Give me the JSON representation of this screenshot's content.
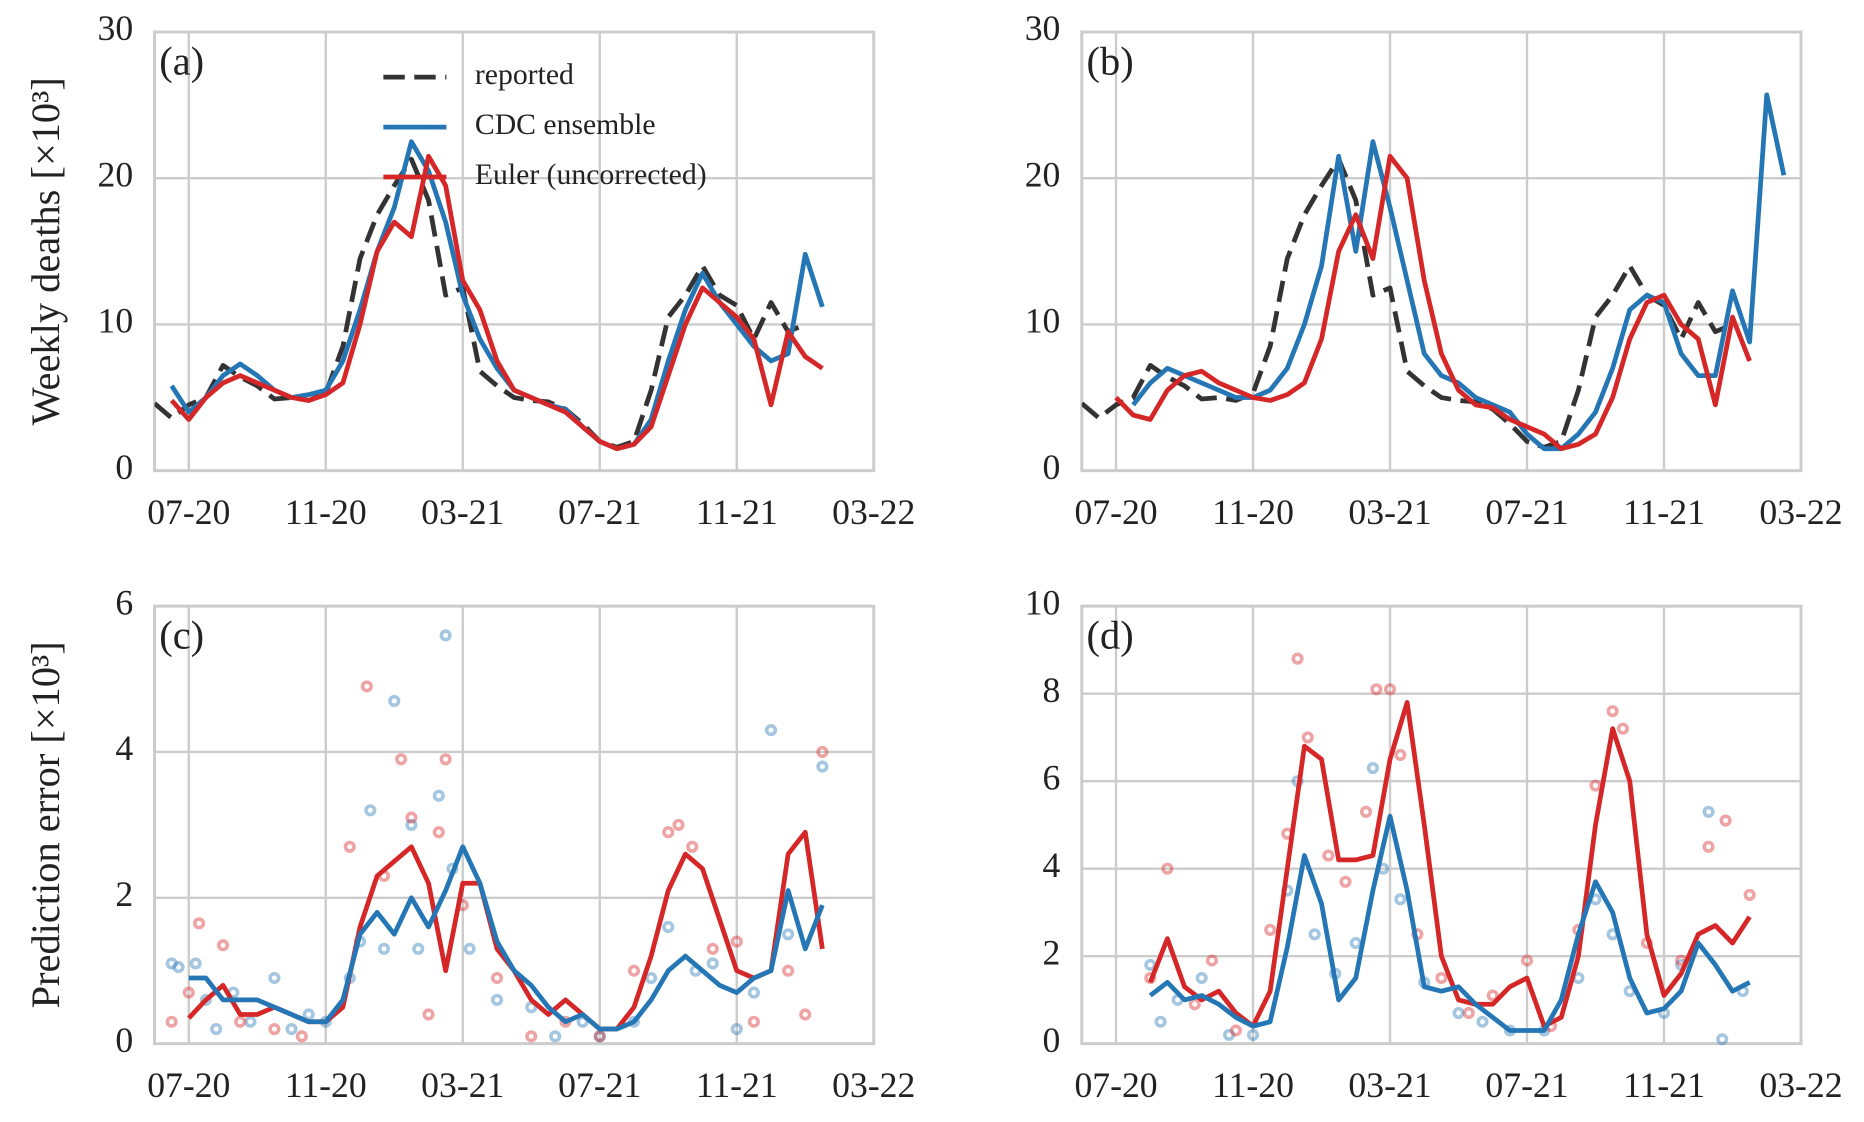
{
  "chart_data": [
    {
      "type": "line",
      "panel_label": "(a)",
      "ylabel": "Weekly deaths [×10³]",
      "x": [
        -1,
        -0.5,
        0,
        0.5,
        1,
        1.5,
        2,
        2.5,
        3,
        3.5,
        4,
        4.5,
        5,
        5.5,
        6,
        6.5,
        7,
        7.5,
        8,
        8.5,
        9,
        9.5,
        10,
        10.5,
        11,
        11.5,
        12,
        12.5,
        13,
        13.5,
        14,
        14.5,
        15,
        15.5,
        16,
        16.5,
        17,
        17.5,
        18,
        18.5,
        19,
        19.5
      ],
      "xlim": [
        -1,
        20
      ],
      "xticks": [
        {
          "value": 0,
          "label": "07-20"
        },
        {
          "value": 4,
          "label": "11-20"
        },
        {
          "value": 8,
          "label": "03-21"
        },
        {
          "value": 12,
          "label": "07-21"
        },
        {
          "value": 16,
          "label": "11-21"
        },
        {
          "value": 20,
          "label": "03-22"
        }
      ],
      "ylim": [
        0,
        30
      ],
      "yticks": [
        0,
        10,
        20,
        30
      ],
      "grid": true,
      "legend": "upper center",
      "series": [
        {
          "name": "reported",
          "color": "#333333",
          "linestyle": "dashed",
          "values": [
            4.6,
            3.6,
            4.5,
            5.0,
            7.2,
            6.4,
            5.8,
            4.9,
            5.0,
            4.8,
            5.3,
            8.5,
            14.5,
            17.5,
            19.5,
            21.3,
            18.5,
            12.0,
            12.5,
            6.8,
            5.8,
            5.0,
            4.8,
            4.7,
            4.2,
            3.2,
            2.0,
            1.6,
            2.0,
            5.5,
            10.5,
            12.0,
            14.0,
            12.0,
            11.3,
            9.0,
            11.5,
            9.5,
            10.0,
            null,
            null,
            null
          ]
        },
        {
          "name": "CDC ensemble",
          "color": "#2576b5",
          "values": [
            null,
            5.8,
            4.0,
            5.0,
            6.5,
            7.3,
            6.5,
            5.5,
            5.0,
            5.2,
            5.5,
            7.5,
            11,
            15,
            18,
            22.5,
            20.5,
            17,
            12,
            9,
            7,
            5.5,
            5.0,
            4.5,
            4.2,
            3.0,
            2.0,
            1.5,
            1.8,
            3.5,
            7.5,
            11,
            13.5,
            11.5,
            10.0,
            8.5,
            7.5,
            8.0,
            14.8,
            11.2,
            null,
            null
          ]
        },
        {
          "name": "Euler (uncorrected)",
          "color": "#d62728",
          "values": [
            null,
            4.8,
            3.5,
            5.0,
            6.0,
            6.5,
            6.0,
            5.5,
            5.0,
            4.8,
            5.2,
            6,
            10,
            15,
            17,
            16,
            21.5,
            19.5,
            13,
            11,
            7.5,
            5.5,
            5.0,
            4.5,
            4.0,
            3.0,
            2.0,
            1.5,
            1.8,
            3.0,
            6.5,
            10,
            12.5,
            11.5,
            10.5,
            9.0,
            4.5,
            9.5,
            7.8,
            7.0,
            null,
            null
          ]
        }
      ]
    },
    {
      "type": "line",
      "panel_label": "(b)",
      "x": [
        -1,
        -0.5,
        0,
        0.5,
        1,
        1.5,
        2,
        2.5,
        3,
        3.5,
        4,
        4.5,
        5,
        5.5,
        6,
        6.5,
        7,
        7.5,
        8,
        8.5,
        9,
        9.5,
        10,
        10.5,
        11,
        11.5,
        12,
        12.5,
        13,
        13.5,
        14,
        14.5,
        15,
        15.5,
        16,
        16.5,
        17,
        17.5,
        18,
        18.5,
        19,
        19.5
      ],
      "xlim": [
        -1,
        20
      ],
      "xticks": [
        {
          "value": 0,
          "label": "07-20"
        },
        {
          "value": 4,
          "label": "11-20"
        },
        {
          "value": 8,
          "label": "03-21"
        },
        {
          "value": 12,
          "label": "07-21"
        },
        {
          "value": 16,
          "label": "11-21"
        },
        {
          "value": 20,
          "label": "03-22"
        }
      ],
      "ylim": [
        0,
        30
      ],
      "yticks": [
        0,
        10,
        20,
        30
      ],
      "grid": true,
      "series": [
        {
          "color": "#333333",
          "linestyle": "dashed",
          "values": [
            4.6,
            3.6,
            4.5,
            5.0,
            7.2,
            6.4,
            5.8,
            4.9,
            5.0,
            4.8,
            5.3,
            8.5,
            14.5,
            17.5,
            19.5,
            21.3,
            18.5,
            12.0,
            12.5,
            6.8,
            5.8,
            5.0,
            4.8,
            4.7,
            4.2,
            3.2,
            2.0,
            1.6,
            2.0,
            5.5,
            10.5,
            12.0,
            14.0,
            12.0,
            11.3,
            9.0,
            11.5,
            9.5,
            10.0,
            null,
            null,
            null
          ]
        },
        {
          "color": "#2576b5",
          "values": [
            null,
            null,
            null,
            4.5,
            6,
            7,
            6.5,
            6,
            5.5,
            5.0,
            5.0,
            5.5,
            7,
            10,
            14,
            21.5,
            15,
            22.5,
            18,
            13,
            8,
            6.5,
            6,
            5,
            4.5,
            4,
            2.5,
            1.5,
            1.5,
            2.5,
            4,
            7,
            11,
            12,
            11.5,
            8,
            6.5,
            6.5,
            12.3,
            8.8,
            25.7,
            20.2
          ]
        },
        {
          "color": "#d62728",
          "values": [
            null,
            null,
            5.0,
            3.8,
            3.5,
            5.5,
            6.5,
            6.8,
            6,
            5.5,
            5.0,
            4.8,
            5.2,
            6,
            9,
            15,
            17.5,
            14.5,
            21.5,
            20,
            13,
            8,
            5.5,
            4.5,
            4.3,
            3.5,
            3.0,
            2.5,
            1.5,
            1.8,
            2.5,
            5,
            9,
            11.5,
            12,
            10,
            9,
            4.5,
            10.5,
            7.5,
            null,
            null
          ]
        }
      ]
    },
    {
      "type": "line",
      "panel_label": "(c)",
      "ylabel": "Prediction error [×10³]",
      "x": [
        -1,
        -0.5,
        0,
        0.5,
        1,
        1.5,
        2,
        2.5,
        3,
        3.5,
        4,
        4.5,
        5,
        5.5,
        6,
        6.5,
        7,
        7.5,
        8,
        8.5,
        9,
        9.5,
        10,
        10.5,
        11,
        11.5,
        12,
        12.5,
        13,
        13.5,
        14,
        14.5,
        15,
        15.5,
        16,
        16.5,
        17,
        17.5,
        18,
        18.5,
        19,
        19.5
      ],
      "xlim": [
        -1,
        20
      ],
      "xticks": [
        {
          "value": 0,
          "label": "07-20"
        },
        {
          "value": 4,
          "label": "11-20"
        },
        {
          "value": 8,
          "label": "03-21"
        },
        {
          "value": 12,
          "label": "07-21"
        },
        {
          "value": 16,
          "label": "11-21"
        },
        {
          "value": 20,
          "label": "03-22"
        }
      ],
      "ylim": [
        0,
        6
      ],
      "yticks": [
        0,
        2,
        4,
        6
      ],
      "grid": true,
      "series": [
        {
          "style": "scatter",
          "color": "#2576b5",
          "x": [
            -0.5,
            -0.3,
            0.2,
            0.5,
            0.8,
            1.3,
            1.8,
            2.5,
            3.0,
            3.5,
            4.0,
            4.7,
            5.0,
            5.3,
            5.7,
            6.0,
            6.5,
            6.7,
            7.3,
            7.5,
            7.7,
            8.2,
            9.0,
            10.0,
            10.7,
            11.5,
            12.0,
            13.0,
            13.5,
            14.0,
            14.8,
            15.3,
            16.0,
            16.5,
            17.0,
            17.5,
            18.5
          ],
          "values": [
            1.1,
            1.05,
            1.1,
            0.6,
            0.2,
            0.7,
            0.3,
            0.9,
            0.2,
            0.4,
            0.3,
            0.9,
            1.4,
            3.2,
            1.3,
            4.7,
            3.0,
            1.3,
            3.4,
            5.6,
            2.4,
            1.3,
            0.6,
            0.5,
            0.1,
            0.3,
            0.1,
            0.3,
            0.9,
            1.6,
            1.0,
            1.1,
            0.2,
            0.7,
            4.3,
            1.5,
            3.8
          ]
        },
        {
          "style": "scatter",
          "color": "#d62728",
          "x": [
            -0.5,
            0,
            0.3,
            1.0,
            1.5,
            2.5,
            3.3,
            4.7,
            5.2,
            5.7,
            6.2,
            6.5,
            7.0,
            7.3,
            7.5,
            8.0,
            9.0,
            10.0,
            11.0,
            12.0,
            13.0,
            14.0,
            14.3,
            14.7,
            15.3,
            16.0,
            16.5,
            17.5,
            18.0,
            18.5
          ],
          "values": [
            0.3,
            0.7,
            1.65,
            1.35,
            0.3,
            0.2,
            0.1,
            2.7,
            4.9,
            2.3,
            3.9,
            3.1,
            0.4,
            2.9,
            3.9,
            1.9,
            0.9,
            0.1,
            0.3,
            0.1,
            1.0,
            2.9,
            3.0,
            2.7,
            1.3,
            1.4,
            0.3,
            1.0,
            0.4,
            4.0
          ]
        },
        {
          "color": "#d62728",
          "values": [
            null,
            null,
            0.35,
            0.6,
            0.8,
            0.4,
            0.4,
            0.5,
            0.4,
            0.3,
            0.3,
            0.5,
            1.6,
            2.3,
            2.5,
            2.7,
            2.2,
            1.0,
            2.2,
            2.2,
            1.3,
            1.0,
            0.6,
            0.4,
            0.6,
            0.4,
            0.2,
            0.2,
            0.5,
            1.2,
            2.1,
            2.6,
            2.4,
            1.7,
            1.0,
            0.9,
            1.0,
            2.6,
            2.9,
            1.3,
            null,
            null
          ]
        },
        {
          "color": "#2576b5",
          "values": [
            null,
            null,
            0.9,
            0.9,
            0.6,
            0.6,
            0.6,
            0.5,
            0.4,
            0.3,
            0.3,
            0.6,
            1.5,
            1.8,
            1.5,
            2.0,
            1.6,
            2.1,
            2.7,
            2.2,
            1.4,
            1.0,
            0.8,
            0.5,
            0.3,
            0.4,
            0.2,
            0.2,
            0.3,
            0.6,
            1.0,
            1.2,
            1.0,
            0.8,
            0.7,
            0.9,
            1.0,
            2.1,
            1.3,
            1.9,
            null,
            null
          ]
        }
      ]
    },
    {
      "type": "line",
      "panel_label": "(d)",
      "x": [
        -1,
        -0.5,
        0,
        0.5,
        1,
        1.5,
        2,
        2.5,
        3,
        3.5,
        4,
        4.5,
        5,
        5.5,
        6,
        6.5,
        7,
        7.5,
        8,
        8.5,
        9,
        9.5,
        10,
        10.5,
        11,
        11.5,
        12,
        12.5,
        13,
        13.5,
        14,
        14.5,
        15,
        15.5,
        16,
        16.5,
        17,
        17.5,
        18,
        18.5,
        19,
        19.5
      ],
      "xlim": [
        -1,
        20
      ],
      "xticks": [
        {
          "value": 0,
          "label": "07-20"
        },
        {
          "value": 4,
          "label": "11-20"
        },
        {
          "value": 8,
          "label": "03-21"
        },
        {
          "value": 12,
          "label": "07-21"
        },
        {
          "value": 16,
          "label": "11-21"
        },
        {
          "value": 20,
          "label": "03-22"
        }
      ],
      "ylim": [
        0,
        10
      ],
      "yticks": [
        0,
        2,
        4,
        6,
        8,
        10
      ],
      "grid": true,
      "series": [
        {
          "style": "scatter",
          "color": "#2576b5",
          "x": [
            1,
            1.3,
            1.8,
            2.5,
            3.3,
            4.0,
            5.0,
            5.3,
            5.8,
            6.4,
            7.0,
            7.5,
            7.8,
            8.3,
            9.0,
            10.0,
            10.7,
            11.5,
            12.5,
            13.5,
            14.0,
            14.5,
            15.0,
            16.0,
            16.5,
            17.3,
            17.7,
            18.3
          ],
          "values": [
            1.8,
            0.5,
            1.0,
            1.5,
            0.2,
            0.2,
            3.5,
            6.0,
            2.5,
            1.6,
            2.3,
            6.3,
            4.0,
            3.3,
            1.4,
            0.7,
            0.5,
            0.3,
            0.3,
            1.5,
            3.3,
            2.5,
            1.2,
            0.7,
            1.8,
            5.3,
            0.1,
            1.2
          ]
        },
        {
          "style": "scatter",
          "color": "#d62728",
          "x": [
            1,
            1.5,
            2.3,
            2.8,
            3.5,
            4.5,
            5.0,
            5.3,
            5.6,
            6.2,
            6.7,
            7.3,
            7.6,
            8.0,
            8.3,
            8.8,
            9.5,
            10.3,
            11.0,
            12.0,
            12.7,
            13.5,
            14.0,
            14.5,
            14.8,
            15.5,
            16.5,
            17.3,
            17.8,
            18.5
          ],
          "values": [
            1.5,
            4.0,
            0.9,
            1.9,
            0.3,
            2.6,
            4.8,
            8.8,
            7.0,
            4.3,
            3.7,
            5.3,
            8.1,
            8.1,
            6.6,
            2.5,
            1.5,
            0.7,
            1.1,
            1.9,
            0.4,
            2.6,
            5.9,
            7.6,
            7.2,
            2.3,
            1.9,
            4.5,
            5.1,
            3.4
          ]
        },
        {
          "color": "#d62728",
          "values": [
            null,
            null,
            null,
            null,
            1.4,
            2.4,
            1.3,
            1.0,
            1.2,
            0.7,
            0.4,
            1.2,
            4.0,
            6.8,
            6.5,
            4.2,
            4.2,
            4.3,
            6.5,
            7.8,
            5.0,
            2.0,
            1.0,
            0.9,
            0.9,
            1.3,
            1.5,
            0.4,
            0.6,
            2.0,
            5.0,
            7.2,
            6.0,
            2.5,
            1.1,
            1.6,
            2.5,
            2.7,
            2.3,
            2.9,
            null,
            null
          ]
        },
        {
          "color": "#2576b5",
          "values": [
            null,
            null,
            null,
            null,
            1.1,
            1.4,
            1.0,
            1.1,
            0.9,
            0.6,
            0.4,
            0.5,
            2.2,
            4.3,
            3.2,
            1.0,
            1.5,
            3.5,
            5.2,
            3.5,
            1.3,
            1.2,
            1.3,
            0.9,
            0.6,
            0.3,
            0.3,
            0.3,
            1.0,
            2.5,
            3.7,
            3.0,
            1.5,
            0.7,
            0.8,
            1.2,
            2.3,
            1.8,
            1.2,
            1.4,
            null,
            null
          ]
        }
      ]
    }
  ]
}
